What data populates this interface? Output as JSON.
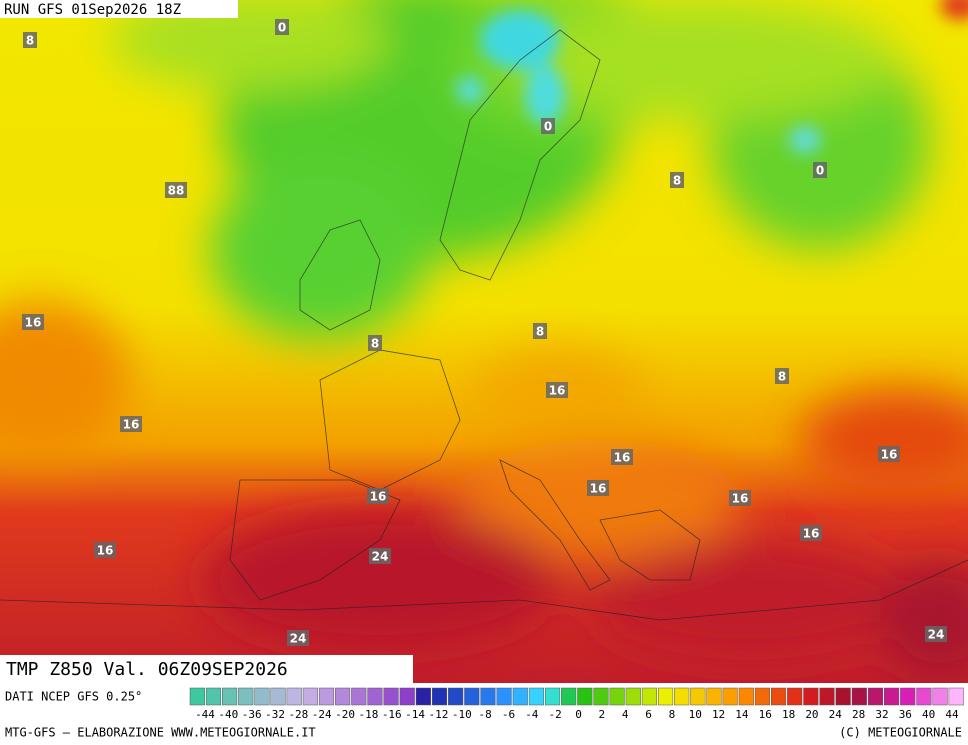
{
  "header": {
    "run": "RUN GFS 01Sep2026 18Z"
  },
  "map": {
    "labels": [
      "0",
      "8",
      "0",
      "0",
      "88",
      "8",
      "16",
      "8",
      "8",
      "16",
      "8",
      "16",
      "16",
      "16",
      "16",
      "16",
      "16",
      "16",
      "16",
      "24",
      "24",
      "24"
    ]
  },
  "footer": {
    "title": "TMP Z850 Val. 06Z09SEP2026",
    "source": "DATI NCEP GFS 0.25°",
    "scale_labels": [
      "-44",
      "-40",
      "-36",
      "-32",
      "-28",
      "-24",
      "-20",
      "-18",
      "-16",
      "-14",
      "-12",
      "-10",
      "-8",
      "-6",
      "-4",
      "-2",
      "0",
      "2",
      "4",
      "6",
      "8",
      "10",
      "12",
      "14",
      "16",
      "18",
      "20",
      "24",
      "28",
      "32",
      "36",
      "40",
      "44"
    ],
    "credit_left": "MTG-GFS — ELABORAZIONE WWW.METEOGIORNALE.IT",
    "credit_right": "(C) METEOGIORNALE"
  }
}
